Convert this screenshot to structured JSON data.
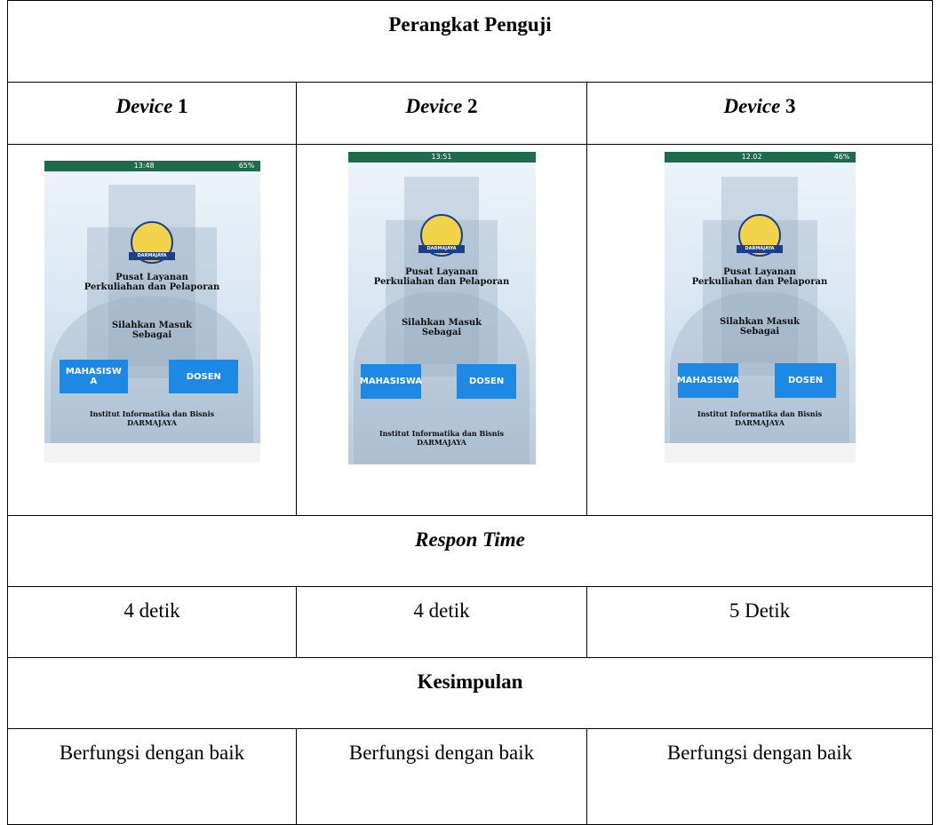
{
  "header": {
    "title": "Perangkat Penguji"
  },
  "devices": [
    {
      "label": "Device",
      "number": "1",
      "screen": {
        "status_time": "13:48",
        "battery": "65%",
        "logo_text": "DARMAJAYA",
        "title_lines": [
          "Pusat Layanan",
          "Perkuliahan dan Pelaporan"
        ],
        "prompt_lines": [
          "Silahkan Masuk",
          "Sebagai"
        ],
        "buttons": [
          "MAHASISWA",
          "DOSEN"
        ],
        "footer_lines": [
          "Institut Informatika dan Bisnis",
          "DARMAJAYA"
        ]
      },
      "response_time": "4 detik",
      "conclusion": "Berfungsi dengan baik"
    },
    {
      "label": "Device",
      "number": "2",
      "screen": {
        "status_time": "13:51",
        "logo_text": "DARMAJAYA",
        "title_lines": [
          "Pusat Layanan",
          "Perkuliahan dan Pelaporan"
        ],
        "prompt_lines": [
          "Silahkan Masuk",
          "Sebagai"
        ],
        "buttons": [
          "MAHASISWA",
          "DOSEN"
        ],
        "footer_lines": [
          "Institut Informatika dan Bisnis",
          "DARMAJAYA"
        ]
      },
      "response_time": "4 detik",
      "conclusion": "Berfungsi dengan baik"
    },
    {
      "label": "Device",
      "number": "3",
      "screen": {
        "status_time": "12.02",
        "battery": "46%",
        "logo_text": "DARMAJAYA",
        "title_lines": [
          "Pusat Layanan",
          "Perkuliahan dan Pelaporan"
        ],
        "prompt_lines": [
          "Silahkan Masuk",
          "Sebagai"
        ],
        "buttons": [
          "MAHASISWA",
          "DOSEN"
        ],
        "footer_lines": [
          "Institut Informatika dan Bisnis",
          "DARMAJAYA"
        ]
      },
      "response_time": "5 Detik",
      "conclusion": "Berfungsi dengan baik"
    }
  ],
  "response_header": "Respon Time",
  "conclusion_header": "Kesimpulan"
}
